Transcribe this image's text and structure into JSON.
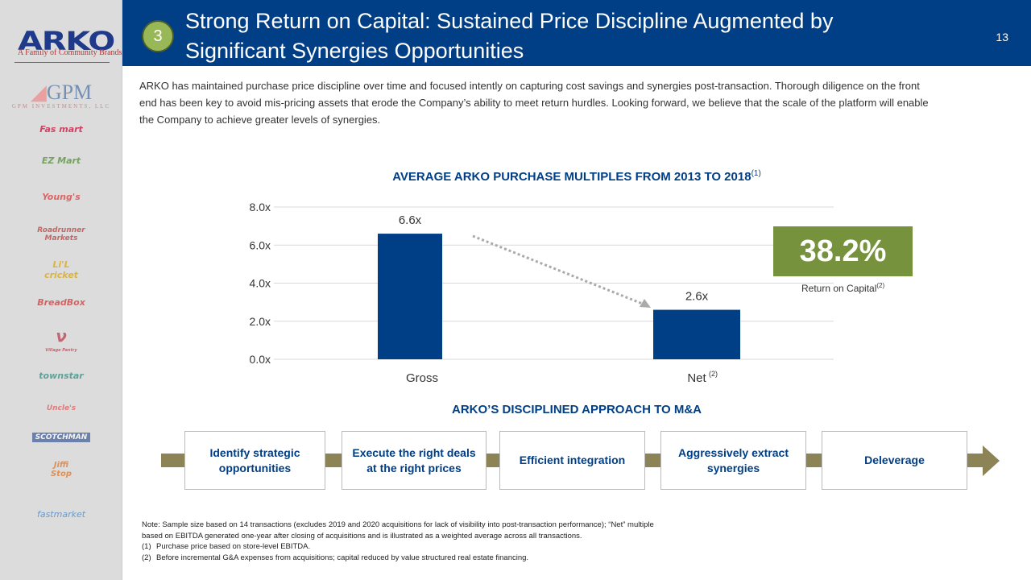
{
  "sidebar": {
    "logo": "ARKO",
    "tagline": "A Family of Community Brands",
    "brands": [
      "GPM INVESTMENTS, LLC",
      "Fas mart",
      "EZ Mart",
      "Young's",
      "Roadrunner Markets",
      "Li'L cricket",
      "BreadBox",
      "Village Pantry",
      "townstar",
      "Uncle's",
      "SCOTCHMAN",
      "Jiffi Stop",
      "fastmarket"
    ]
  },
  "header": {
    "section_number": "3",
    "title": "Strong Return on Capital: Sustained Price Discipline Augmented by Significant Synergies Opportunities",
    "page_number": "13"
  },
  "intro": "ARKO has maintained purchase price discipline over time and focused intently on capturing cost savings and synergies post-transaction. Thorough diligence on the front end has been key to avoid mis-pricing assets that erode the Company’s ability to meet return hurdles. Looking forward, we believe that the scale of the platform will enable the Company to achieve greater levels of synergies.",
  "chart_data": {
    "type": "bar",
    "title": "AVERAGE ARKO PURCHASE MULTIPLES FROM 2013 TO 2018",
    "title_sup": "(1)",
    "categories": [
      "Gross",
      "Net"
    ],
    "category_sups": [
      "",
      "(2)"
    ],
    "values": [
      6.6,
      2.6
    ],
    "data_labels": [
      "6.6x",
      "2.6x"
    ],
    "ylim": [
      0,
      8
    ],
    "yticks": [
      "0.0x",
      "2.0x",
      "4.0x",
      "6.0x",
      "8.0x"
    ],
    "ytick_values": [
      0,
      2,
      4,
      6,
      8
    ],
    "bar_color": "#003e86",
    "grid": true
  },
  "callout": {
    "value": "38.2%",
    "label": "Return on Capital",
    "label_sup": "(2)",
    "color": "#76923c"
  },
  "approach": {
    "title": "ARKO’S DISCIPLINED APPROACH TO M&A",
    "steps": [
      "Identify strategic opportunities",
      "Execute the right deals at the right prices",
      "Efficient integration",
      "Aggressively extract synergies",
      "Deleverage"
    ]
  },
  "notes": {
    "main": "Note:  Sample size based on 14 transactions (excludes 2019 and 2020 acquisitions for lack of visibility into post-transaction performance); “Net” multiple based on EBITDA generated one-year after closing of acquisitions and is illustrated as a weighted average across all transactions.",
    "footnotes": [
      {
        "num": "(1)",
        "text": "Purchase price based on store-level EBITDA."
      },
      {
        "num": "(2)",
        "text": "Before incremental G&A expenses from acquisitions; capital reduced by value structured real estate financing."
      }
    ]
  }
}
